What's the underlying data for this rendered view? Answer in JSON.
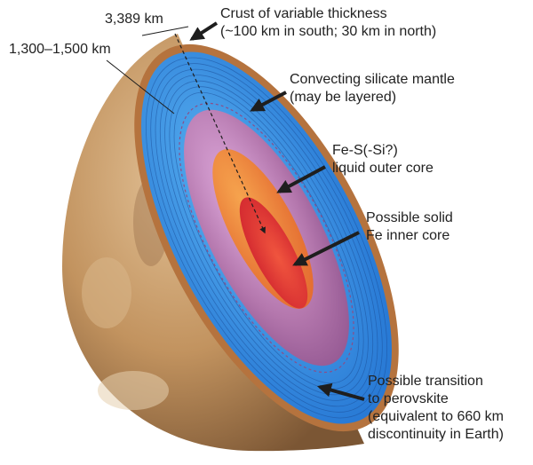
{
  "labels": {
    "radius": "3,389 km",
    "core_radius": "1,300–1,500 km",
    "crust": [
      "Crust of variable thickness",
      "(~100 km in south; 30 km in north)"
    ],
    "mantle": [
      "Convecting silicate mantle",
      "(may be layered)"
    ],
    "outer_core": [
      "Fe-S(-Si?)",
      "liquid outer core"
    ],
    "inner_core": [
      "Possible solid",
      "Fe inner core"
    ],
    "transition": [
      "Possible transition",
      "to perovskite",
      "(equivalent to 660 km",
      "discontinuity in Earth)"
    ]
  },
  "colors": {
    "crust": "#b5733e",
    "mantle": "#2f8fe0",
    "lower_mantle": "#a6679e",
    "outer_core": "#ef8a3a",
    "inner_core": "#e23a3a",
    "surface": "#c69a68",
    "arrow": "#1e1e1e"
  }
}
